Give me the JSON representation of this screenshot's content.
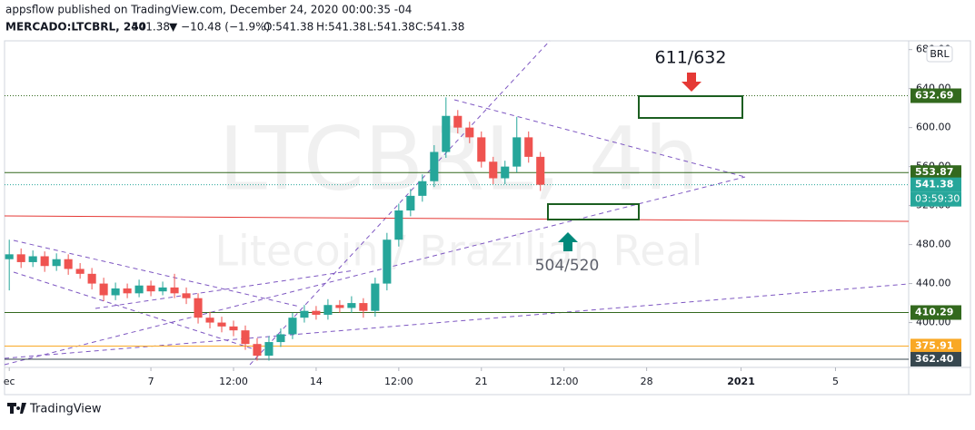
{
  "chart_data": {
    "type": "candlestick",
    "header": {
      "attribution": "appsflow published on TradingView.com, December 24, 2020 00:00:35 -04",
      "symbol": "MERCADO:LTCBRL, 240",
      "last": "541.38",
      "change": "▼ −10.48 (−1.9%)",
      "ohlc": [
        "O:541.38",
        "H:541.38",
        "L:541.38",
        "C:541.38"
      ]
    },
    "watermark": [
      "LTCBRL, 4h",
      "Litecoin / Brazilian Real"
    ],
    "currency_button": "BRL",
    "countdown": "03:59:30",
    "logo": "TradingView",
    "annotations": [
      "611/632",
      "504/520"
    ],
    "up_color": "#26a69a",
    "down_color": "#ef5350",
    "x": [
      1,
      1.5,
      2,
      2.5,
      3,
      3.5,
      4,
      4.5,
      5,
      5.5,
      6,
      6.5,
      7,
      7.5,
      8,
      8.5,
      9,
      9.5,
      10,
      10.5,
      11,
      11.5,
      12,
      12.5,
      13,
      13.5,
      14,
      14.5,
      15,
      15.5,
      16,
      16.5,
      17,
      17.5,
      18,
      18.5,
      19,
      19.5,
      20,
      20.5,
      21,
      21.5,
      22,
      22.5,
      23,
      23.5
    ],
    "open": [
      465,
      470,
      462,
      468,
      458,
      465,
      455,
      450,
      440,
      428,
      435,
      430,
      438,
      432,
      436,
      430,
      425,
      405,
      400,
      396,
      392,
      378,
      366,
      380,
      388,
      405,
      412,
      408,
      418,
      415,
      420,
      412,
      440,
      485,
      515,
      530,
      545,
      575,
      612,
      600,
      590,
      565,
      548,
      560,
      590,
      570
    ],
    "high": [
      485,
      476,
      474,
      473,
      471,
      470,
      461,
      456,
      446,
      441,
      440,
      444,
      443,
      442,
      450,
      436,
      430,
      411,
      406,
      402,
      397,
      384,
      386,
      394,
      410,
      418,
      417,
      424,
      423,
      427,
      425,
      446,
      492,
      522,
      537,
      552,
      582,
      631,
      618,
      606,
      596,
      570,
      566,
      611,
      596,
      575
    ],
    "low": [
      433,
      456,
      457,
      452,
      453,
      449,
      445,
      434,
      422,
      423,
      425,
      426,
      427,
      428,
      425,
      419,
      399,
      394,
      390,
      386,
      372,
      361,
      361,
      375,
      383,
      400,
      403,
      403,
      410,
      410,
      405,
      406,
      433,
      478,
      509,
      524,
      539,
      569,
      594,
      584,
      559,
      542,
      542,
      554,
      564,
      535
    ],
    "close": [
      470,
      462,
      468,
      458,
      465,
      455,
      450,
      440,
      428,
      435,
      430,
      438,
      432,
      436,
      430,
      425,
      405,
      400,
      396,
      392,
      378,
      366,
      380,
      388,
      405,
      412,
      408,
      418,
      415,
      420,
      412,
      440,
      485,
      515,
      530,
      545,
      575,
      612,
      600,
      590,
      565,
      548,
      560,
      590,
      570,
      541.38
    ],
    "xlim": [
      0.8,
      39.1
    ],
    "xticks": [
      {
        "value": 1,
        "label": "ec"
      },
      7,
      {
        "value": 10.5,
        "label": "12:00"
      },
      14,
      {
        "value": 17.5,
        "label": "12:00"
      },
      21,
      {
        "value": 24.5,
        "label": "12:00"
      },
      28,
      {
        "value": 32,
        "label": "2021"
      },
      {
        "value": 36,
        "label": "5"
      }
    ],
    "ylim": [
      354,
      689
    ],
    "yticks": [
      {
        "value": 680,
        "label": "680.00"
      },
      {
        "value": 640,
        "label": "640.00"
      },
      {
        "value": 600,
        "label": "600.00"
      },
      {
        "value": 560,
        "label": "560.00"
      },
      {
        "value": 520,
        "label": "520.00"
      },
      {
        "value": 480,
        "label": "480.00"
      },
      {
        "value": 440,
        "label": "440.00"
      },
      {
        "value": 400,
        "label": "400.00"
      }
    ],
    "price_levels": [
      {
        "value": 632.69,
        "color": "#33691e",
        "style": "dotted"
      },
      {
        "value": 553.87,
        "color": "#33691e",
        "style": "solid"
      },
      {
        "value": 541.38,
        "color": "#26a69a",
        "style": "dotted"
      },
      {
        "value": 410.29,
        "color": "#33691e",
        "style": "solid"
      },
      {
        "value": 375.91,
        "color": "#f9a825",
        "style": "solid"
      },
      {
        "value": 362.4,
        "label": "362.40",
        "color": "#37474f",
        "style": "solid"
      }
    ]
  }
}
